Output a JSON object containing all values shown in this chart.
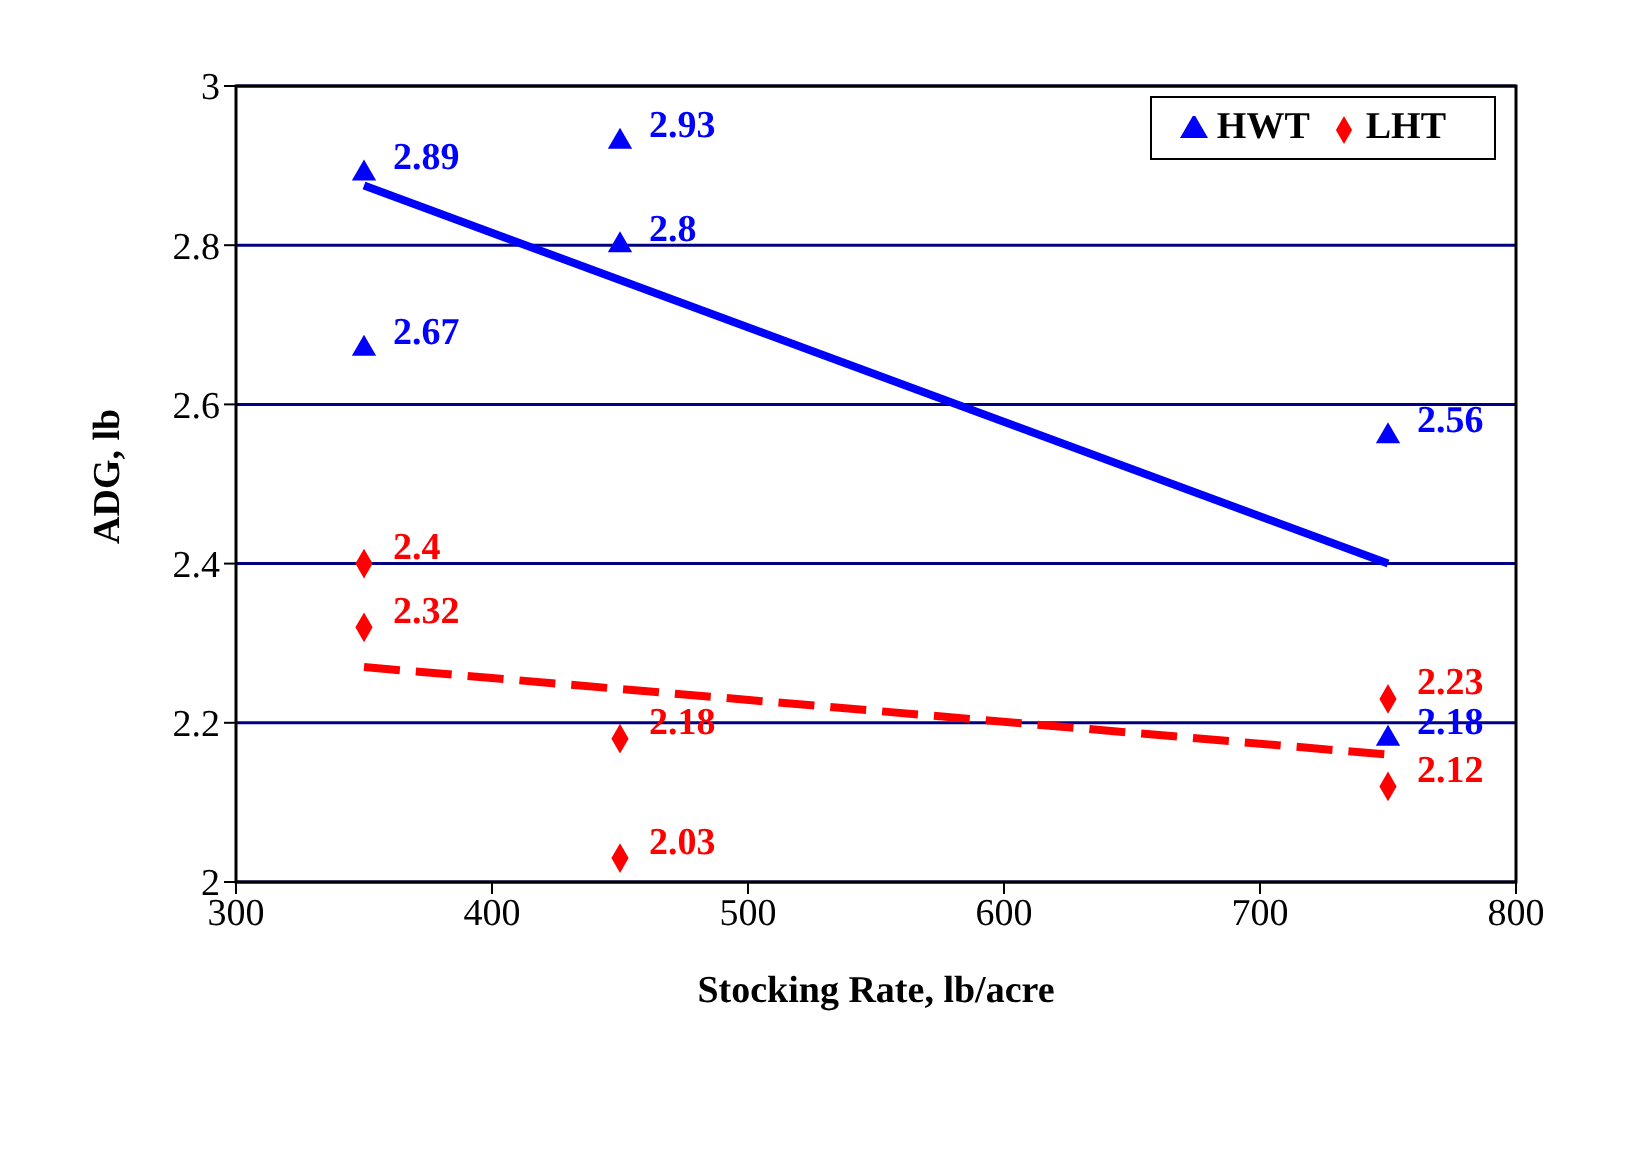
{
  "chart_data": {
    "type": "scatter",
    "xlabel": "Stocking Rate, lb/acre",
    "ylabel": "ADG, lb",
    "xlim": [
      300,
      800
    ],
    "xticks": [
      300,
      400,
      500,
      600,
      700,
      800
    ],
    "ylim": [
      2,
      3
    ],
    "yticks": [
      2,
      2.2,
      2.4,
      2.6,
      2.8,
      3
    ],
    "grid": "y",
    "legend": "top right",
    "series": [
      {
        "name": "HWT",
        "marker": "triangle",
        "color": "#0000ff",
        "x": [
          350,
          350,
          450,
          450,
          750,
          750
        ],
        "values": [
          2.89,
          2.67,
          2.93,
          2.8,
          2.56,
          2.18
        ],
        "value_labels": [
          "2.89",
          "2.67",
          "2.93",
          "2.8",
          "2.56",
          "2.18"
        ]
      },
      {
        "name": "LHT",
        "marker": "diamond",
        "color": "#ff0000",
        "x": [
          350,
          350,
          450,
          450,
          750,
          750
        ],
        "values": [
          2.4,
          2.32,
          2.18,
          2.03,
          2.23,
          2.12
        ],
        "value_labels": [
          "2.4",
          "2.32",
          "2.18",
          "2.03",
          "2.23",
          "2.12"
        ]
      },
      {
        "type": "line",
        "line_style": "solid",
        "marker": "none",
        "color": "#0000ff",
        "x": [
          350,
          750
        ],
        "values": [
          2.875,
          2.4
        ]
      },
      {
        "type": "line",
        "line_style": "dashed",
        "marker": "none",
        "color": "#ff0000",
        "x": [
          350,
          750
        ],
        "values": [
          2.27,
          2.16
        ]
      }
    ]
  }
}
